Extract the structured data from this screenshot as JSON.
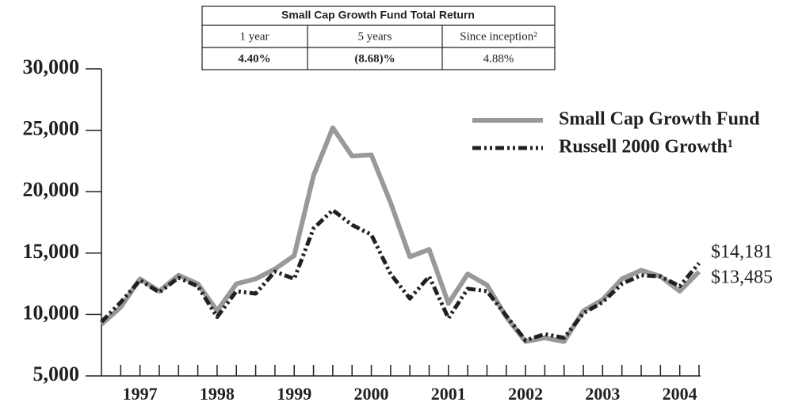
{
  "table": {
    "title": "Small Cap Growth Fund Total Return",
    "headers": [
      "1 year",
      "5 years",
      "Since inception²"
    ],
    "values": [
      "4.40%",
      "(8.68)%",
      "4.88%"
    ]
  },
  "chart_data": {
    "type": "line",
    "categories": [
      null,
      null,
      "1997",
      null,
      null,
      null,
      "1998",
      null,
      null,
      null,
      "1999",
      null,
      null,
      null,
      "2000",
      null,
      null,
      null,
      "2001",
      null,
      null,
      null,
      "2002",
      null,
      null,
      null,
      "2003",
      null,
      null,
      null,
      "2004",
      null
    ],
    "series": [
      {
        "name": "Small Cap Growth Fund",
        "color": "#999999",
        "values": [
          9200,
          10600,
          12900,
          11900,
          13200,
          12500,
          10300,
          12500,
          12900,
          13700,
          14800,
          21300,
          25200,
          22900,
          23000,
          19100,
          14700,
          15300,
          10900,
          13300,
          12400,
          9800,
          7800,
          8100,
          7800,
          10300,
          11200,
          12900,
          13600,
          13100,
          11900,
          13485
        ],
        "value_labels": [
          null,
          null,
          null,
          null,
          null,
          null,
          null,
          null,
          null,
          null,
          null,
          null,
          null,
          null,
          null,
          null,
          null,
          null,
          null,
          null,
          null,
          null,
          null,
          null,
          null,
          null,
          null,
          null,
          null,
          null,
          null,
          "$13,485"
        ]
      },
      {
        "name": "Russell 2000 Growth¹",
        "color": "#231f20",
        "values": [
          9400,
          11000,
          12800,
          11800,
          13000,
          12300,
          9800,
          11900,
          11700,
          13500,
          12900,
          17000,
          18500,
          17300,
          16500,
          13300,
          11300,
          13100,
          9700,
          12100,
          11900,
          9900,
          7900,
          8400,
          8100,
          10100,
          11000,
          12500,
          13200,
          13100,
          12300,
          14181
        ],
        "value_labels": [
          null,
          null,
          null,
          null,
          null,
          null,
          null,
          null,
          null,
          null,
          null,
          null,
          null,
          null,
          null,
          null,
          null,
          null,
          null,
          null,
          null,
          null,
          null,
          null,
          null,
          null,
          null,
          null,
          null,
          null,
          null,
          "$14,181"
        ]
      }
    ],
    "ylim": [
      5000,
      30000
    ],
    "yticks": [
      {
        "value": 5000,
        "label": "5,000"
      },
      {
        "value": 10000,
        "label": "10,000"
      },
      {
        "value": 15000,
        "label": "15,000"
      },
      {
        "value": 20000,
        "label": "20,000"
      },
      {
        "value": 25000,
        "label": "25,000"
      },
      {
        "value": 30000,
        "label": "30,000"
      }
    ],
    "legend": "upper right"
  }
}
